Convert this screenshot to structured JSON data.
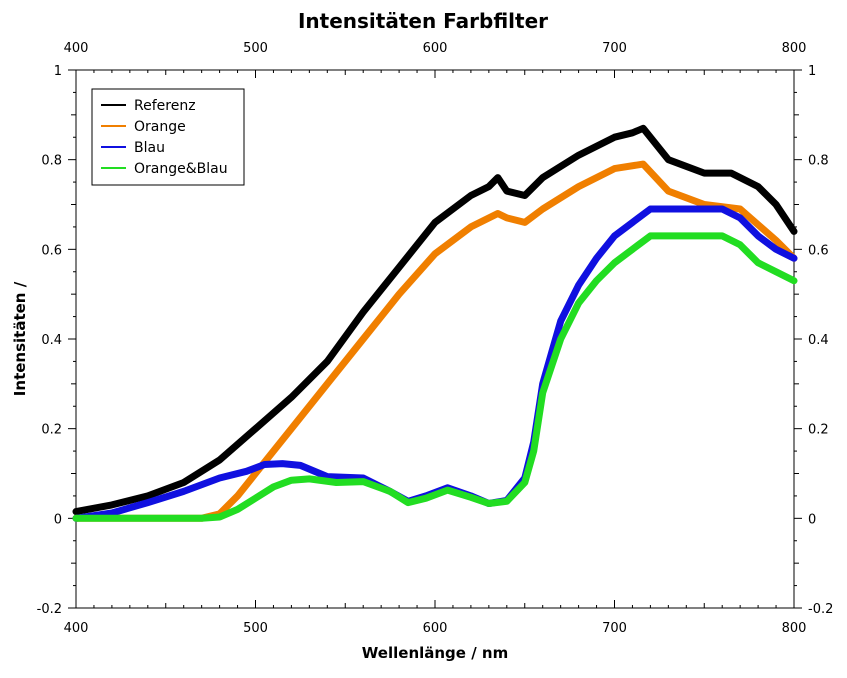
{
  "chart_data": {
    "type": "line",
    "title": "Intensitäten Farbfilter",
    "xlabel": "Wellenlänge / nm",
    "ylabel": "Intensitäten /",
    "xlim": [
      400,
      800
    ],
    "ylim": [
      -0.2,
      1
    ],
    "x_ticks": [
      "400",
      "500",
      "600",
      "700",
      "800"
    ],
    "y_ticks": [
      "-0.2",
      "0",
      "0.2",
      "0.4",
      "0.6",
      "0.8",
      "1"
    ],
    "legend_position": "top-left",
    "grid": false,
    "series": [
      {
        "name": "Referenz",
        "color": "#000000",
        "x": [
          400,
          420,
          440,
          460,
          480,
          500,
          520,
          540,
          560,
          580,
          600,
          620,
          630,
          635,
          640,
          650,
          660,
          680,
          700,
          710,
          716,
          730,
          750,
          765,
          780,
          790,
          800
        ],
        "values": [
          0.015,
          0.03,
          0.05,
          0.08,
          0.13,
          0.2,
          0.27,
          0.35,
          0.46,
          0.56,
          0.66,
          0.72,
          0.74,
          0.76,
          0.73,
          0.72,
          0.76,
          0.81,
          0.85,
          0.86,
          0.87,
          0.8,
          0.77,
          0.77,
          0.74,
          0.7,
          0.64
        ]
      },
      {
        "name": "Orange",
        "color": "#f07f00",
        "x": [
          400,
          460,
          470,
          480,
          490,
          500,
          520,
          540,
          560,
          580,
          600,
          620,
          635,
          640,
          650,
          660,
          680,
          700,
          716,
          730,
          750,
          770,
          790,
          800
        ],
        "values": [
          0,
          0,
          0,
          0.01,
          0.05,
          0.1,
          0.2,
          0.3,
          0.4,
          0.5,
          0.59,
          0.65,
          0.68,
          0.67,
          0.66,
          0.69,
          0.74,
          0.78,
          0.79,
          0.73,
          0.7,
          0.69,
          0.62,
          0.58
        ]
      },
      {
        "name": "Blau",
        "color": "#1010e0",
        "x": [
          400,
          420,
          440,
          460,
          480,
          495,
          505,
          515,
          525,
          540,
          560,
          575,
          585,
          595,
          607,
          620,
          630,
          640,
          650,
          655,
          660,
          665,
          670,
          680,
          690,
          700,
          710,
          720,
          740,
          760,
          770,
          780,
          790,
          800
        ],
        "values": [
          0,
          0.012,
          0.035,
          0.06,
          0.09,
          0.105,
          0.12,
          0.122,
          0.118,
          0.093,
          0.09,
          0.06,
          0.038,
          0.05,
          0.068,
          0.05,
          0.033,
          0.04,
          0.09,
          0.17,
          0.3,
          0.37,
          0.44,
          0.52,
          0.58,
          0.63,
          0.66,
          0.69,
          0.69,
          0.69,
          0.67,
          0.63,
          0.6,
          0.58
        ]
      },
      {
        "name": "Orange&Blau",
        "color": "#22dd22",
        "x": [
          400,
          460,
          470,
          480,
          490,
          500,
          510,
          520,
          530,
          545,
          560,
          575,
          585,
          595,
          607,
          620,
          630,
          640,
          650,
          655,
          660,
          665,
          670,
          680,
          690,
          700,
          710,
          720,
          740,
          760,
          770,
          780,
          790,
          800
        ],
        "values": [
          0,
          0,
          0,
          0.003,
          0.02,
          0.045,
          0.07,
          0.085,
          0.088,
          0.08,
          0.082,
          0.06,
          0.035,
          0.045,
          0.063,
          0.047,
          0.033,
          0.038,
          0.08,
          0.15,
          0.28,
          0.34,
          0.4,
          0.48,
          0.53,
          0.57,
          0.6,
          0.63,
          0.63,
          0.63,
          0.61,
          0.57,
          0.55,
          0.53
        ]
      }
    ]
  }
}
